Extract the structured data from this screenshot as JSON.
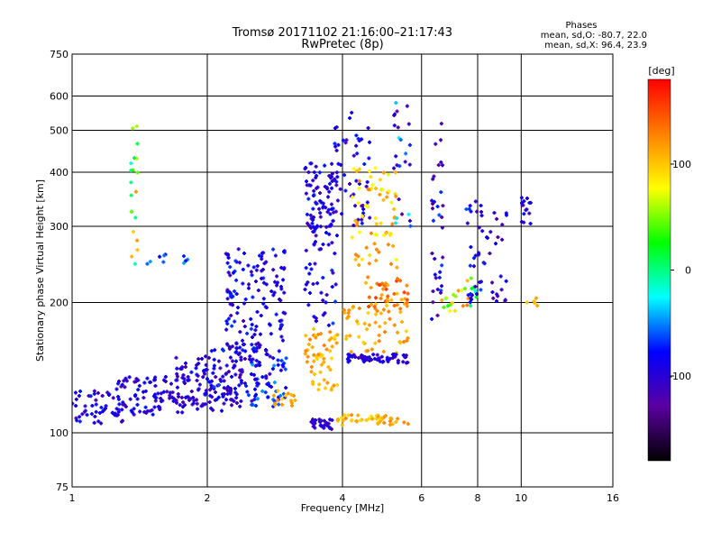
{
  "chart_data": {
    "type": "scatter",
    "title": "Tromsø 20171102 21:16:00–21:17:43",
    "subtitle": "RwPretec (8p)",
    "xlabel": "Frequency [MHz]",
    "ylabel": "Stationary phase Virtual Height [km]",
    "x_scale": "log",
    "y_scale": "log",
    "xlim": [
      1,
      16
    ],
    "ylim": [
      75,
      750
    ],
    "x_ticks": [
      1,
      2,
      4,
      6,
      8,
      10,
      16
    ],
    "x_tick_labels": [
      "1",
      "2",
      "4",
      "6",
      "8",
      "10",
      "16"
    ],
    "y_ticks": [
      75,
      100,
      200,
      300,
      400,
      500,
      600,
      750
    ],
    "y_tick_labels": [
      "75",
      "100",
      "200",
      "300",
      "400",
      "500",
      "600",
      "750"
    ],
    "grid": true,
    "stats": {
      "title": "Phases",
      "line_o": "mean, sd,O: -80.7, 22.0",
      "line_x": "mean, sd,X:  96.4, 23.9"
    },
    "colorbar": {
      "label": "[deg]",
      "range": [
        -180,
        180
      ],
      "ticks": [
        100,
        0,
        -100
      ],
      "tick_labels": [
        "100",
        "0",
        "-100"
      ],
      "colors": [
        "#000000",
        "#5a00a0",
        "#0000ff",
        "#00ffff",
        "#00ff00",
        "#ffff00",
        "#ff8000",
        "#ff0000"
      ]
    },
    "clusters": [
      {
        "f": [
          1.0,
          1.3
        ],
        "h": [
          105,
          125
        ],
        "phase": -95,
        "spread": 25,
        "n": 55
      },
      {
        "f": [
          1.25,
          1.8
        ],
        "h": [
          110,
          135
        ],
        "phase": -95,
        "spread": 25,
        "n": 90
      },
      {
        "f": [
          1.7,
          2.4
        ],
        "h": [
          112,
          150
        ],
        "phase": -100,
        "spread": 25,
        "n": 110
      },
      {
        "f": [
          1.9,
          2.6
        ],
        "h": [
          118,
          160
        ],
        "phase": -90,
        "spread": 30,
        "n": 60
      },
      {
        "f": [
          2.2,
          3.0
        ],
        "h": [
          150,
          270
        ],
        "phase": -90,
        "spread": 25,
        "n": 150
      },
      {
        "f": [
          2.5,
          3.0
        ],
        "h": [
          115,
          150
        ],
        "phase": -75,
        "spread": 30,
        "n": 55
      },
      {
        "f": [
          2.8,
          3.2
        ],
        "h": [
          115,
          125
        ],
        "phase": 110,
        "spread": 15,
        "n": 15
      },
      {
        "f": [
          3.3,
          3.9
        ],
        "h": [
          285,
          420
        ],
        "phase": -95,
        "spread": 25,
        "n": 90
      },
      {
        "f": [
          3.3,
          3.9
        ],
        "h": [
          175,
          280
        ],
        "phase": -90,
        "spread": 25,
        "n": 40
      },
      {
        "f": [
          3.3,
          3.9
        ],
        "h": [
          125,
          175
        ],
        "phase": 110,
        "spread": 20,
        "n": 55
      },
      {
        "f": [
          3.4,
          3.8
        ],
        "h": [
          102,
          108
        ],
        "phase": -100,
        "spread": 20,
        "n": 30
      },
      {
        "f": [
          3.8,
          4.6
        ],
        "h": [
          300,
          550
        ],
        "phase": -95,
        "spread": 25,
        "n": 50
      },
      {
        "f": [
          4.2,
          5.3
        ],
        "h": [
          240,
          410
        ],
        "phase": 100,
        "spread": 30,
        "n": 70
      },
      {
        "f": [
          4.0,
          5.6
        ],
        "h": [
          150,
          200
        ],
        "phase": 110,
        "spread": 20,
        "n": 55
      },
      {
        "f": [
          4.1,
          5.6
        ],
        "h": [
          145,
          152
        ],
        "phase": -100,
        "spread": 15,
        "n": 60
      },
      {
        "f": [
          3.9,
          5.6
        ],
        "h": [
          104,
          110
        ],
        "phase": 110,
        "spread": 20,
        "n": 45
      },
      {
        "f": [
          4.5,
          5.6
        ],
        "h": [
          190,
          230
        ],
        "phase": 130,
        "spread": 30,
        "n": 40
      },
      {
        "f": [
          5.2,
          5.7
        ],
        "h": [
          300,
          600
        ],
        "phase": -80,
        "spread": 60,
        "n": 25
      },
      {
        "f": [
          6.3,
          6.7
        ],
        "h": [
          180,
          520
        ],
        "phase": -100,
        "spread": 40,
        "n": 35
      },
      {
        "f": [
          6.6,
          8.0
        ],
        "h": [
          190,
          230
        ],
        "phase": 60,
        "spread": 80,
        "n": 25
      },
      {
        "f": [
          7.5,
          8.2
        ],
        "h": [
          200,
          350
        ],
        "phase": -90,
        "spread": 30,
        "n": 30
      },
      {
        "f": [
          8.2,
          9.3
        ],
        "h": [
          190,
          330
        ],
        "phase": -100,
        "spread": 35,
        "n": 25
      },
      {
        "f": [
          10.0,
          10.5
        ],
        "h": [
          300,
          350
        ],
        "phase": -95,
        "spread": 20,
        "n": 15
      },
      {
        "f": [
          10.3,
          11.0
        ],
        "h": [
          195,
          205
        ],
        "phase": 110,
        "spread": 10,
        "n": 5
      },
      {
        "f": [
          1.35,
          1.4
        ],
        "h": [
          230,
          540
        ],
        "phase": 40,
        "spread": 80,
        "n": 20
      },
      {
        "f": [
          1.45,
          1.85
        ],
        "h": [
          245,
          260
        ],
        "phase": -60,
        "spread": 20,
        "n": 10
      }
    ]
  }
}
